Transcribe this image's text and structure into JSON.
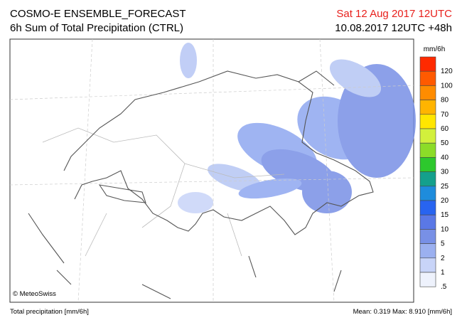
{
  "header": {
    "title": "COSMO-E ENSEMBLE_FORECAST",
    "subtitle": "6h Sum of Total Precipitation (CTRL)",
    "valid": "Sat 12 Aug 2017 12UTC",
    "run": "10.08.2017 12UTC +48h"
  },
  "map": {
    "credit": "© MeteoSwiss"
  },
  "legend": {
    "unit": "mm/6h",
    "levels": [
      {
        "label": "120",
        "color": "#ff2a00"
      },
      {
        "label": "100",
        "color": "#ff5a00"
      },
      {
        "label": "80",
        "color": "#ff8c00"
      },
      {
        "label": "70",
        "color": "#ffb400"
      },
      {
        "label": "60",
        "color": "#ffe600"
      },
      {
        "label": "50",
        "color": "#d2f03c"
      },
      {
        "label": "40",
        "color": "#8cdc28"
      },
      {
        "label": "30",
        "color": "#2dc82d"
      },
      {
        "label": "25",
        "color": "#14a08c"
      },
      {
        "label": "20",
        "color": "#1e8cdc"
      },
      {
        "label": "15",
        "color": "#2864f0"
      },
      {
        "label": "10",
        "color": "#5a78e6"
      },
      {
        "label": "5",
        "color": "#7890e6"
      },
      {
        "label": "2",
        "color": "#9bb0f0"
      },
      {
        "label": "1",
        "color": "#c8d4f8"
      },
      {
        "label": ".5",
        "color": "#eef2fc"
      }
    ]
  },
  "footer": {
    "left": "Total precipitation [mm/6h]",
    "stats": "Mean:  0.319 Max:  8.910 [mm/6h]"
  }
}
